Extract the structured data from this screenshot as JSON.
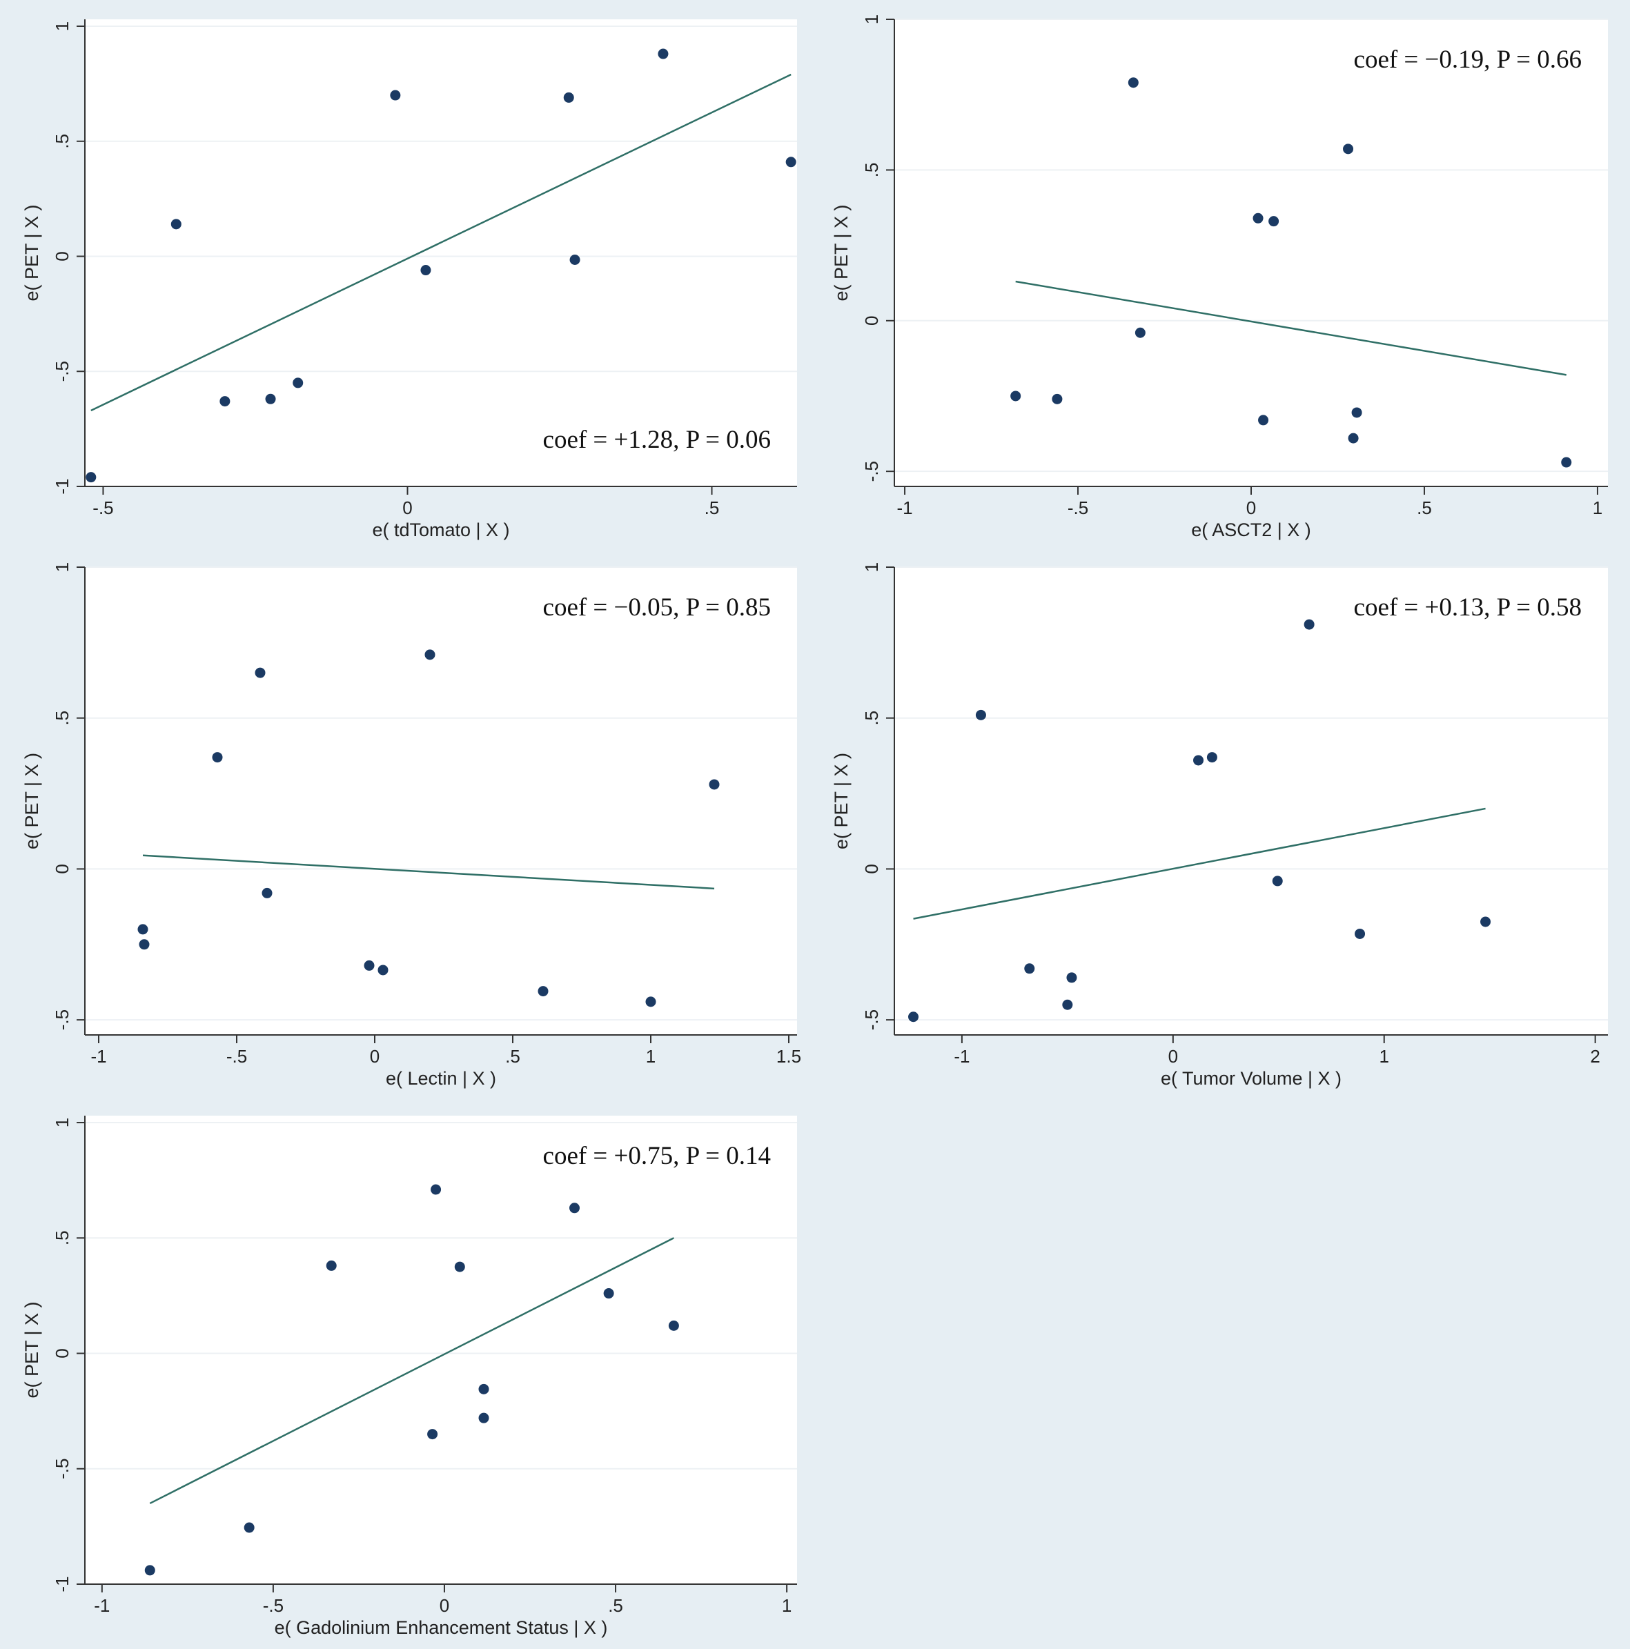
{
  "colors": {
    "background": "#e6eef3",
    "panel": "#ffffff",
    "grid": "#edf1f4",
    "axis": "#333333",
    "point": "#1b3a63",
    "fit_line": "#2f6f66"
  },
  "chart_data": [
    {
      "type": "scatter",
      "title": "",
      "xlabel": "e( tdTomato | X )",
      "ylabel": "e( PET | X )",
      "xlim": [
        -0.53,
        0.64
      ],
      "ylim": [
        -1.0,
        1.03
      ],
      "xticks": [
        -0.5,
        0,
        0.5
      ],
      "xtick_labels": [
        "-.5",
        "0",
        ".5"
      ],
      "yticks": [
        -1,
        -0.5,
        0,
        0.5,
        1
      ],
      "ytick_labels": [
        "-1",
        "-.5",
        "0",
        ".5",
        "1"
      ],
      "annotation": "coef = +1.28, P = 0.06",
      "annotation_position": "bottom-right",
      "x": [
        -0.52,
        -0.38,
        -0.3,
        -0.225,
        -0.18,
        -0.02,
        0.03,
        0.265,
        0.275,
        0.42,
        0.63
      ],
      "y": [
        -0.96,
        0.14,
        -0.63,
        -0.62,
        -0.55,
        0.7,
        -0.06,
        0.69,
        -0.015,
        0.88,
        0.41
      ],
      "fit_line": {
        "x": [
          -0.52,
          0.63
        ],
        "y": [
          -0.67,
          0.79
        ]
      }
    },
    {
      "type": "scatter",
      "title": "",
      "xlabel": "e( ASCT2 | X )",
      "ylabel": "e( PET | X )",
      "xlim": [
        -1.03,
        1.03
      ],
      "ylim": [
        -0.55,
        1.0
      ],
      "xticks": [
        -1,
        -0.5,
        0,
        0.5,
        1
      ],
      "xtick_labels": [
        "-1",
        "-.5",
        "0",
        ".5",
        "1"
      ],
      "yticks": [
        -0.5,
        0,
        0.5,
        1
      ],
      "ytick_labels": [
        "-.5",
        "0",
        ".5",
        "1"
      ],
      "annotation": "coef = −0.19, P = 0.66",
      "annotation_position": "top-right",
      "x": [
        -0.68,
        -0.56,
        -0.34,
        -0.32,
        0.02,
        0.035,
        0.065,
        0.28,
        0.295,
        0.305,
        0.91
      ],
      "y": [
        -0.25,
        -0.26,
        0.79,
        -0.04,
        0.34,
        -0.33,
        0.33,
        0.57,
        -0.39,
        -0.305,
        -0.47
      ],
      "fit_line": {
        "x": [
          -0.68,
          0.91
        ],
        "y": [
          0.13,
          -0.18
        ]
      }
    },
    {
      "type": "scatter",
      "title": "",
      "xlabel": "e( Lectin | X )",
      "ylabel": "e( PET | X )",
      "xlim": [
        -1.05,
        1.53
      ],
      "ylim": [
        -0.55,
        1.0
      ],
      "xticks": [
        -1,
        -0.5,
        0,
        0.5,
        1,
        1.5
      ],
      "xtick_labels": [
        "-1",
        "-.5",
        "0",
        ".5",
        "1",
        "1.5"
      ],
      "yticks": [
        -0.5,
        0,
        0.5,
        1
      ],
      "ytick_labels": [
        "-.5",
        "0",
        ".5",
        "1"
      ],
      "annotation": "coef = −0.05, P = 0.85",
      "annotation_position": "top-right",
      "x": [
        -0.84,
        -0.835,
        -0.57,
        -0.415,
        -0.39,
        -0.02,
        0.03,
        0.2,
        0.61,
        1.0,
        1.23
      ],
      "y": [
        -0.2,
        -0.25,
        0.37,
        0.65,
        -0.08,
        -0.32,
        -0.335,
        0.71,
        -0.405,
        -0.44,
        0.28
      ],
      "fit_line": {
        "x": [
          -0.84,
          1.23
        ],
        "y": [
          0.045,
          -0.065
        ]
      }
    },
    {
      "type": "scatter",
      "title": "",
      "xlabel": "e( Tumor Volume | X )",
      "ylabel": "e( PET | X )",
      "xlim": [
        -1.32,
        2.06
      ],
      "ylim": [
        -0.55,
        1.0
      ],
      "xticks": [
        -1,
        0,
        1,
        2
      ],
      "xtick_labels": [
        "-1",
        "0",
        "1",
        "2"
      ],
      "yticks": [
        -0.5,
        0,
        0.5,
        1
      ],
      "ytick_labels": [
        "-.5",
        "0",
        ".5",
        "1"
      ],
      "annotation": "coef = +0.13, P = 0.58",
      "annotation_position": "top-right",
      "x": [
        -1.23,
        -0.91,
        -0.68,
        -0.5,
        -0.48,
        0.12,
        0.185,
        0.495,
        0.645,
        0.885,
        1.48
      ],
      "y": [
        -0.49,
        0.51,
        -0.33,
        -0.45,
        -0.36,
        0.36,
        0.37,
        -0.04,
        0.81,
        -0.215,
        -0.175
      ],
      "fit_line": {
        "x": [
          -1.23,
          1.48
        ],
        "y": [
          -0.165,
          0.2
        ]
      }
    },
    {
      "type": "scatter",
      "title": "",
      "xlabel": "e( Gadolinium Enhancement Status | X )",
      "ylabel": "e( PET | X )",
      "xlim": [
        -1.05,
        1.03
      ],
      "ylim": [
        -1.0,
        1.03
      ],
      "xticks": [
        -1,
        -0.5,
        0,
        0.5,
        1
      ],
      "xtick_labels": [
        "-1",
        "-.5",
        "0",
        ".5",
        "1"
      ],
      "yticks": [
        -1,
        -0.5,
        0,
        0.5,
        1
      ],
      "ytick_labels": [
        "-1",
        "-.5",
        "0",
        ".5",
        "1"
      ],
      "annotation": "coef = +0.75, P = 0.14",
      "annotation_position": "top-right",
      "x": [
        -0.86,
        -0.57,
        -0.33,
        -0.035,
        -0.025,
        0.045,
        0.115,
        0.115,
        0.38,
        0.48,
        0.67
      ],
      "y": [
        -0.94,
        -0.755,
        0.38,
        -0.35,
        0.71,
        0.375,
        -0.155,
        -0.28,
        0.63,
        0.26,
        0.12
      ],
      "fit_line": {
        "x": [
          -0.86,
          0.67
        ],
        "y": [
          -0.65,
          0.5
        ]
      }
    }
  ]
}
